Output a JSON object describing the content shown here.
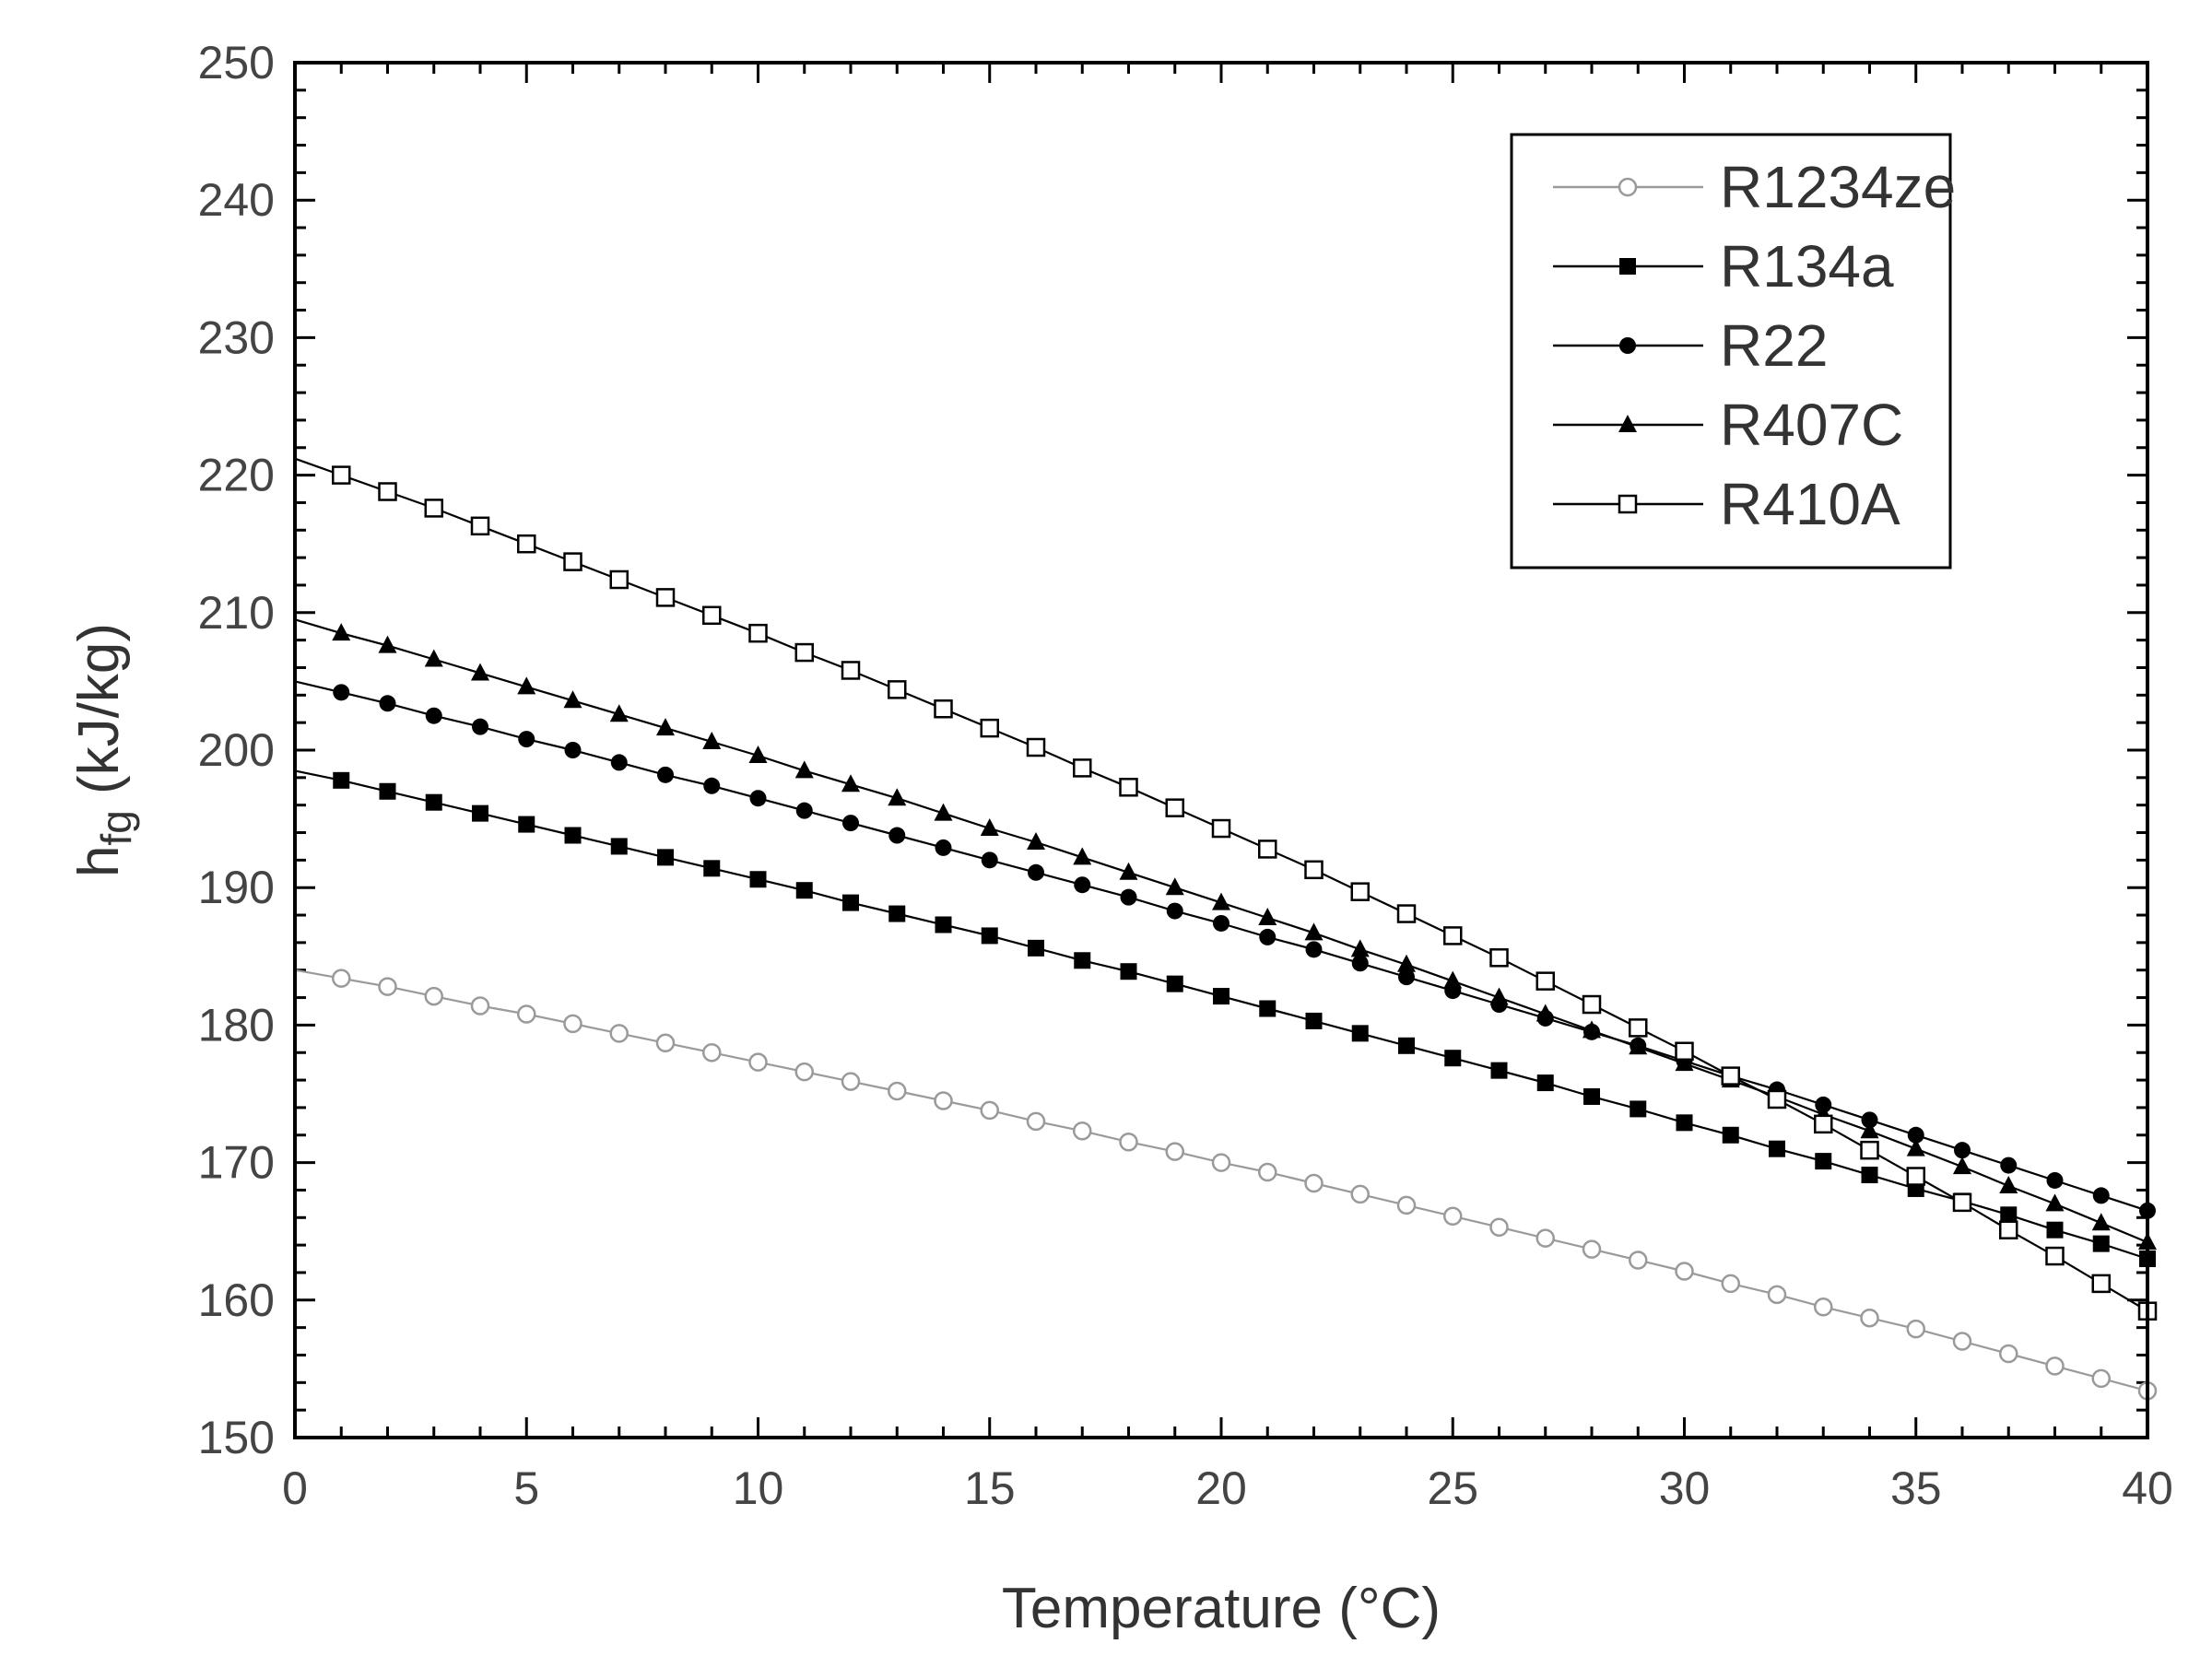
{
  "chart_data": {
    "type": "line",
    "title": "",
    "xlabel": "Temperature (°C)",
    "ylabel": {
      "main": "h",
      "sub": "fg",
      "units": " (kJ/kg)"
    },
    "xlim": [
      0,
      40
    ],
    "ylim": [
      150,
      250
    ],
    "x_ticks": [
      "0",
      "5",
      "10",
      "15",
      "20",
      "25",
      "30",
      "35",
      "40"
    ],
    "y_ticks": [
      "150",
      "160",
      "170",
      "180",
      "190",
      "200",
      "210",
      "220",
      "230",
      "240",
      "250"
    ],
    "grid": false,
    "legend_position": "top-right",
    "x": [
      0,
      1,
      2,
      3,
      4,
      5,
      6,
      7,
      8,
      9,
      10,
      11,
      12,
      13,
      14,
      15,
      16,
      17,
      18,
      19,
      20,
      21,
      22,
      23,
      24,
      25,
      26,
      27,
      28,
      29,
      30,
      31,
      32,
      33,
      34,
      35,
      36,
      37,
      38,
      39,
      40
    ],
    "series": [
      {
        "name": "R1234ze",
        "marker": "open-circle",
        "color": "#9a9a9a",
        "values": [
          184.0,
          183.4,
          182.8,
          182.1,
          181.4,
          180.8,
          180.1,
          179.4,
          178.7,
          178.0,
          177.3,
          176.6,
          175.9,
          175.2,
          174.5,
          173.8,
          173.0,
          172.3,
          171.5,
          170.8,
          170.0,
          169.3,
          168.5,
          167.7,
          166.9,
          166.1,
          165.3,
          164.5,
          163.7,
          162.9,
          162.1,
          161.2,
          160.4,
          159.5,
          158.7,
          157.9,
          157.0,
          156.1,
          155.2,
          154.3,
          153.4
        ]
      },
      {
        "name": "R134a",
        "marker": "filled-square",
        "color": "#000000",
        "values": [
          198.5,
          197.8,
          197.0,
          196.2,
          195.4,
          194.6,
          193.8,
          193.0,
          192.2,
          191.4,
          190.6,
          189.8,
          188.9,
          188.1,
          187.3,
          186.5,
          185.6,
          184.7,
          183.9,
          183.0,
          182.1,
          181.2,
          180.3,
          179.4,
          178.5,
          177.6,
          176.7,
          175.8,
          174.8,
          173.9,
          172.9,
          172.0,
          171.0,
          170.1,
          169.1,
          168.1,
          167.2,
          166.2,
          165.1,
          164.1,
          163.0
        ]
      },
      {
        "name": "R22",
        "marker": "filled-circle",
        "color": "#000000",
        "values": [
          205.0,
          204.2,
          203.4,
          202.5,
          201.7,
          200.8,
          200.0,
          199.1,
          198.2,
          197.4,
          196.5,
          195.6,
          194.7,
          193.8,
          192.9,
          192.0,
          191.1,
          190.2,
          189.3,
          188.3,
          187.4,
          186.4,
          185.5,
          184.5,
          183.5,
          182.5,
          181.5,
          180.5,
          179.5,
          178.5,
          177.4,
          176.3,
          175.3,
          174.2,
          173.1,
          172.0,
          170.9,
          169.8,
          168.7,
          167.6,
          166.5
        ]
      },
      {
        "name": "R407C",
        "marker": "filled-triangle",
        "color": "#000000",
        "values": [
          209.5,
          208.5,
          207.6,
          206.6,
          205.6,
          204.6,
          203.6,
          202.6,
          201.6,
          200.6,
          199.6,
          198.5,
          197.5,
          196.5,
          195.4,
          194.3,
          193.3,
          192.2,
          191.1,
          190.0,
          188.9,
          187.8,
          186.7,
          185.5,
          184.4,
          183.2,
          182.0,
          180.8,
          179.6,
          178.4,
          177.2,
          176.0,
          174.8,
          173.5,
          172.3,
          171.0,
          169.7,
          168.3,
          167.0,
          165.6,
          164.2
        ]
      },
      {
        "name": "R410A",
        "marker": "open-square",
        "color": "#000000",
        "values": [
          221.2,
          220.0,
          218.8,
          217.6,
          216.3,
          215.0,
          213.7,
          212.4,
          211.1,
          209.8,
          208.5,
          207.1,
          205.8,
          204.4,
          203.0,
          201.6,
          200.2,
          198.7,
          197.3,
          195.8,
          194.3,
          192.8,
          191.3,
          189.7,
          188.1,
          186.5,
          184.9,
          183.2,
          181.5,
          179.8,
          178.1,
          176.3,
          174.6,
          172.8,
          170.9,
          169.0,
          167.1,
          165.1,
          163.2,
          161.2,
          159.2
        ]
      }
    ]
  }
}
